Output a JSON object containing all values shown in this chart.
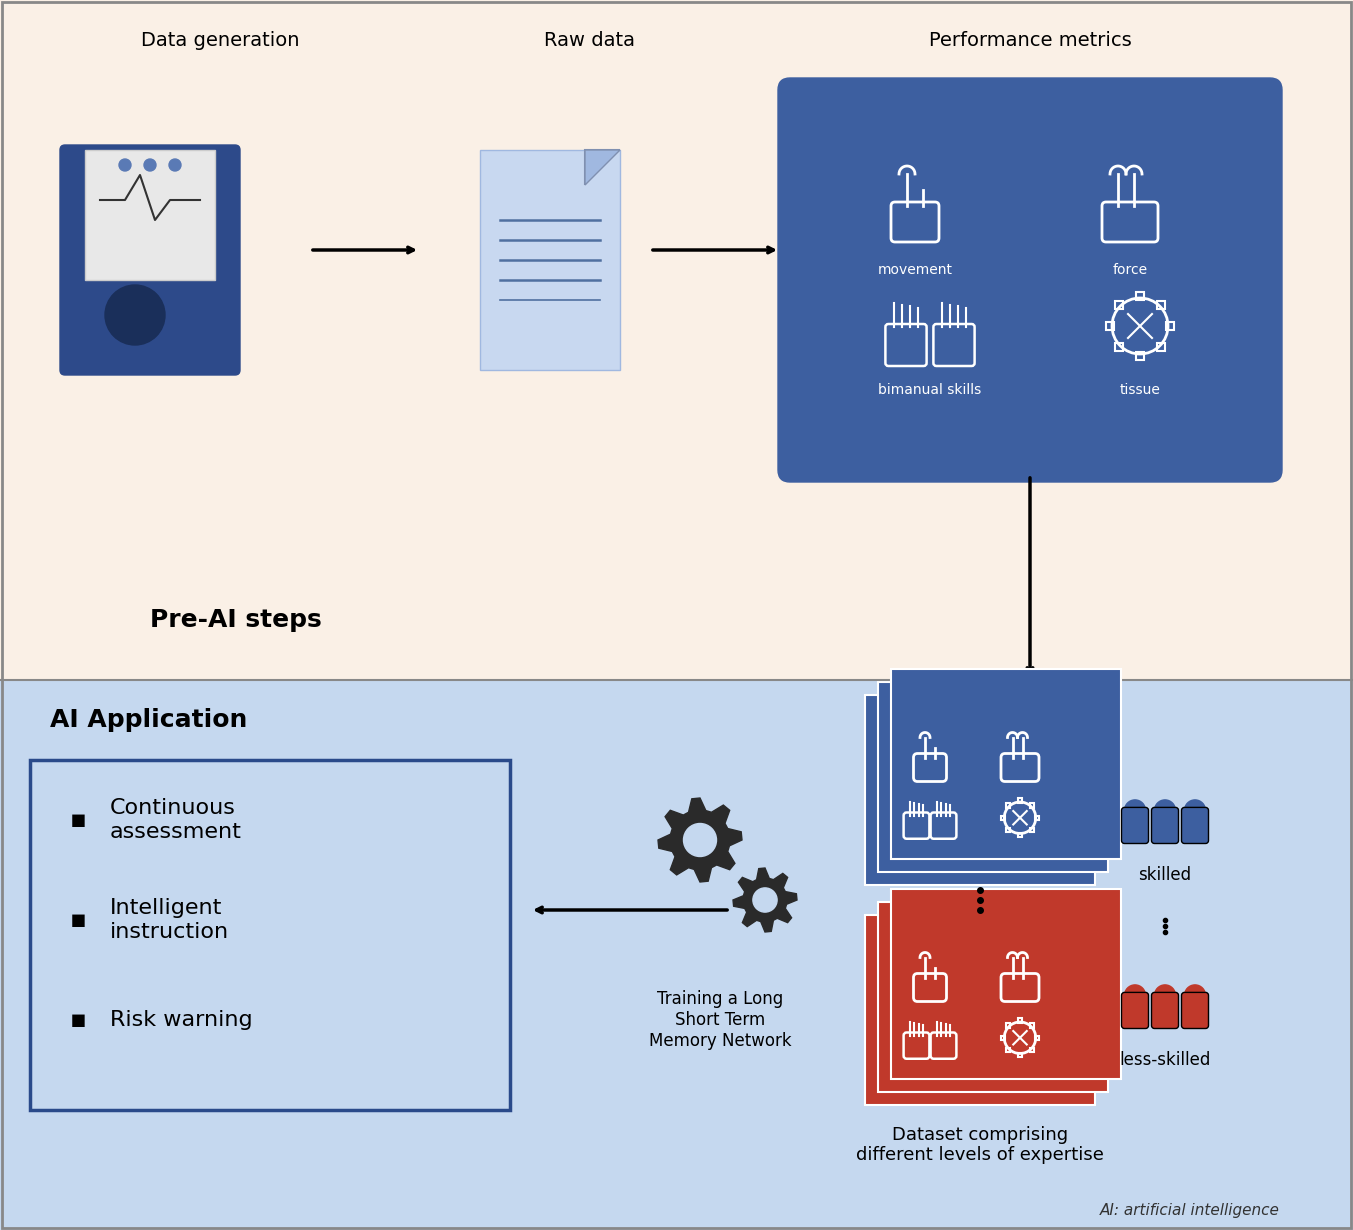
{
  "fig_width": 13.53,
  "fig_height": 12.3,
  "bg_top": "#faf0e6",
  "bg_bottom": "#c5d8ef",
  "blue_dark": "#2d4a8a",
  "blue_medium": "#4a6fa5",
  "blue_light": "#7bafd4",
  "blue_box": "#3d5fa0",
  "red_dark": "#c0392b",
  "red_medium": "#e74c3c",
  "white": "#ffffff",
  "black": "#000000",
  "dark_gray": "#333333",
  "pre_ai_label": "Pre-AI steps",
  "ai_app_label": "AI Application",
  "data_gen_label": "Data generation",
  "raw_data_label": "Raw data",
  "perf_metrics_label": "Performance metrics",
  "movement_label": "movement",
  "force_label": "force",
  "bimanual_label": "bimanual skills",
  "tissue_label": "tissue",
  "bullet1": "Continuous\nassessment",
  "bullet2": "Intelligent\ninstruction",
  "bullet3": "Risk warning",
  "training_label": "Training a Long\nShort Term\nMemory Network",
  "skilled_label": "skilled",
  "less_skilled_label": "less-skilled",
  "dataset_label": "Dataset comprising\ndifferent levels of expertise",
  "footnote": "AI: artificial intelligence"
}
